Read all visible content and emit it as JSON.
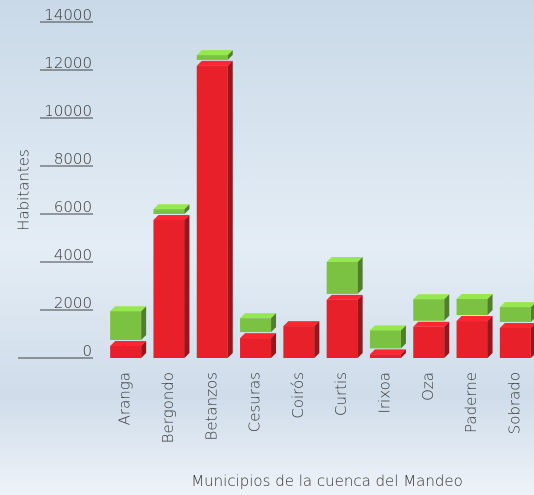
{
  "chart_data": {
    "type": "stacked_bar",
    "y_label": "Habitantes",
    "x_label": "Municipios de la cuenca del Mandeo",
    "categories": [
      "Aranga",
      "Bergondo",
      "Betanzos",
      "Cesuras",
      "Coirós",
      "Curtis",
      "Irixoa",
      "Oza",
      "Paderne",
      "Sobrado"
    ],
    "series": [
      {
        "color": "#e8202a",
        "values": [
          500,
          5750,
          12170,
          830,
          1330,
          2420,
          150,
          1300,
          1540,
          1250
        ]
      },
      {
        "color": "#7cc242",
        "values": [
          1200,
          200,
          200,
          580,
          0,
          1330,
          750,
          900,
          670,
          620
        ]
      }
    ],
    "ylim": [
      0,
      14000
    ],
    "yticks": [
      0,
      2000,
      4000,
      6000,
      8000,
      10000,
      12000,
      14000
    ]
  }
}
